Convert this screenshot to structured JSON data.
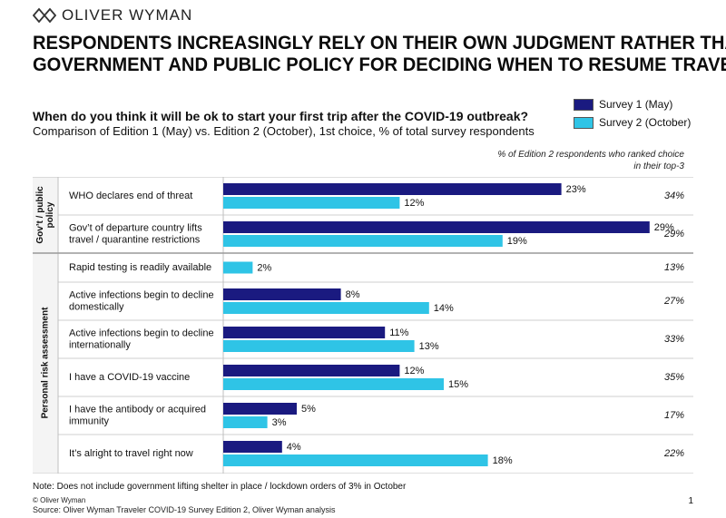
{
  "brand": {
    "name": "OLIVER WYMAN",
    "logo_icon": "oliver-wyman-logo-icon"
  },
  "headline_lines": [
    "RESPONDENTS INCREASINGLY RELY ON THEIR OWN JUDGMENT RATHER THAN",
    "GOVERNMENT AND PUBLIC POLICY FOR DECIDING WHEN TO RESUME TRAVEL"
  ],
  "question": "When do you think it will be ok to start your first trip after the COVID-19 outbreak?",
  "subtitle": "Comparison of Edition 1 (May) vs. Edition 2 (October), 1st choice, % of total survey respondents",
  "top3_header": "% of Edition 2 respondents who ranked choice in their top-3",
  "note": "Note: Does not include government lifting shelter in place / lockdown orders of 3% in October",
  "copyright": "© Oliver Wyman",
  "source": "Source: Oliver Wyman Traveler COVID-19 Survey Edition 2, Oliver Wyman analysis",
  "page_number": "1",
  "colors": {
    "survey1": "#1a1a80",
    "survey2": "#2fc4e6",
    "divider": "#bfbfbf",
    "group_bg": "#f4f4f4"
  },
  "chart_data": {
    "type": "bar",
    "orientation": "horizontal",
    "title": "When do you think it will be ok to start your first trip after the COVID-19 outbreak?",
    "unit": "%",
    "legend_position": "top-right",
    "xlim": [
      0,
      30
    ],
    "series": [
      {
        "name": "Survey 1 (May)",
        "values": [
          23,
          29,
          null,
          8,
          11,
          12,
          5,
          4
        ]
      },
      {
        "name": "Survey 2 (October)",
        "values": [
          12,
          19,
          2,
          14,
          13,
          15,
          3,
          18
        ]
      }
    ],
    "categories": [
      [
        "WHO declares end of threat"
      ],
      [
        "Gov’t of departure country lifts",
        "travel / quarantine restrictions"
      ],
      [
        "Rapid testing is readily available"
      ],
      [
        "Active infections begin to decline",
        "domestically"
      ],
      [
        "Active infections begin to decline",
        "internationally"
      ],
      [
        "I have a COVID-19 vaccine"
      ],
      [
        "I have the antibody or acquired",
        "immunity"
      ],
      [
        "It’s alright to travel right now"
      ]
    ],
    "top3": [
      "34%",
      "29%",
      "13%",
      "27%",
      "33%",
      "35%",
      "17%",
      "22%"
    ],
    "groups": [
      {
        "label_lines": [
          "Gov’t / public",
          "policy"
        ],
        "start": 0,
        "end": 1
      },
      {
        "label_lines": [
          "Personal risk assessment"
        ],
        "start": 2,
        "end": 7
      }
    ]
  }
}
